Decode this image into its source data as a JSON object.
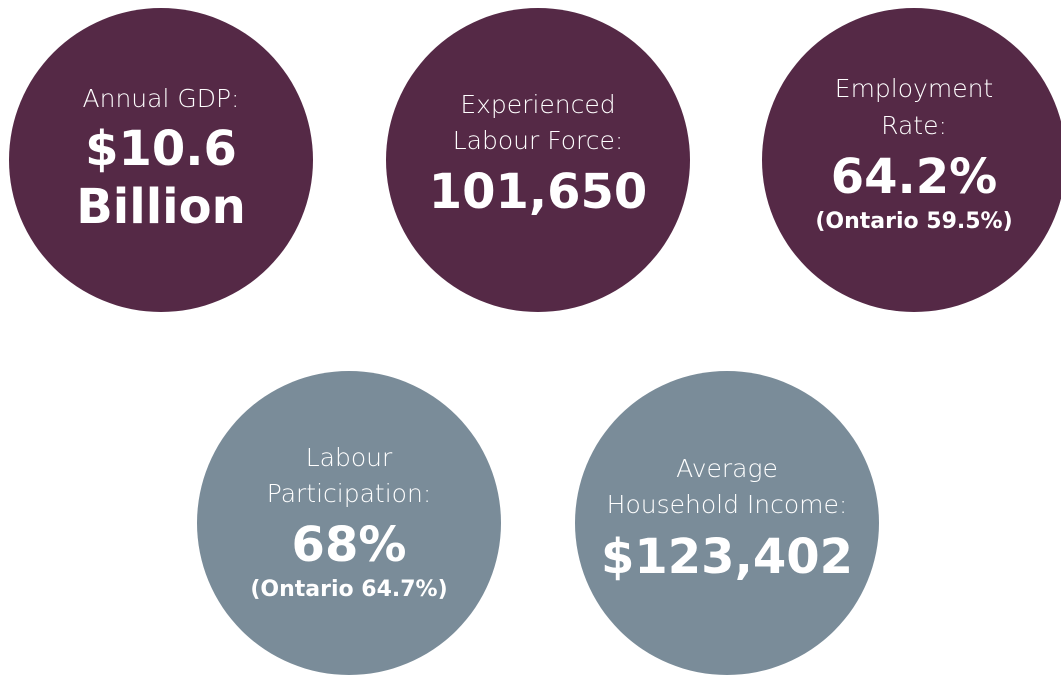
{
  "stats": [
    {
      "label": [
        "Annual GDP:"
      ],
      "value": [
        "$10.6",
        "Billion"
      ],
      "color": "#552946"
    },
    {
      "label": [
        "Experienced",
        "Labour Force:"
      ],
      "value": [
        "101,650"
      ],
      "color": "#552946"
    },
    {
      "label": [
        "Employment",
        "Rate:"
      ],
      "value": [
        "64.2%"
      ],
      "note": "(Ontario 59.5%)",
      "color": "#552946"
    },
    {
      "label": [
        "Labour",
        "Participation:"
      ],
      "value": [
        "68%"
      ],
      "note": "(Ontario 64.7%)",
      "color": "#7a8c99"
    },
    {
      "label": [
        "Average",
        "Household Income:"
      ],
      "value": [
        "$123,402"
      ],
      "color": "#7a8c99"
    }
  ]
}
